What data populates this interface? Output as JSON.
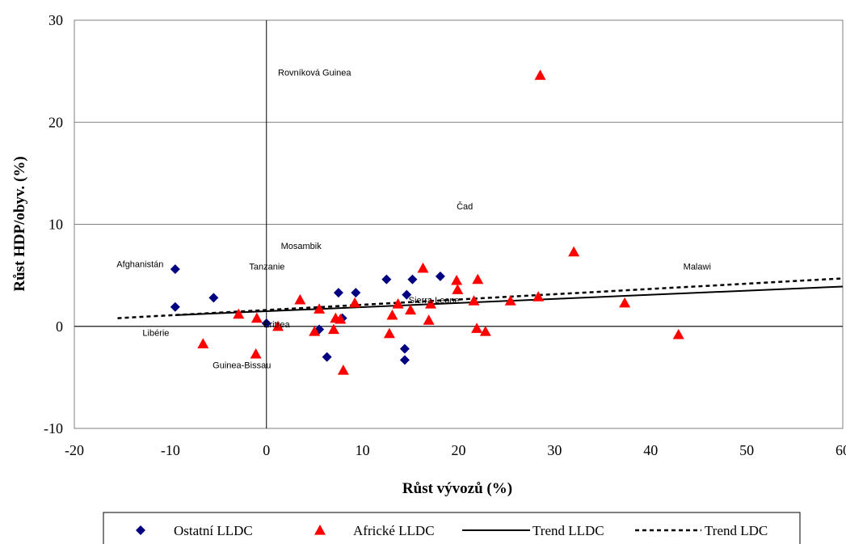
{
  "chart_data": {
    "type": "scatter",
    "xlabel": "Růst vývozů (%)",
    "ylabel": "Růst HDP/obyv. (%)",
    "xlim": [
      -20,
      60
    ],
    "ylim": [
      -10,
      30
    ],
    "x_ticks": [
      -20,
      -10,
      0,
      10,
      20,
      30,
      40,
      50,
      60
    ],
    "y_ticks": [
      -10,
      0,
      10,
      20,
      30
    ],
    "grid": "horizontal",
    "legend_position": "bottom",
    "series": [
      {
        "name": "Ostatní LLDC",
        "marker": "diamond",
        "color": "#000080",
        "points": [
          {
            "x": -9.5,
            "y": 5.6
          },
          {
            "x": -9.5,
            "y": 1.9
          },
          {
            "x": -5.5,
            "y": 2.8
          },
          {
            "x": 0.0,
            "y": 0.3
          },
          {
            "x": 5.5,
            "y": -0.3
          },
          {
            "x": 6.3,
            "y": -3.0
          },
          {
            "x": 7.5,
            "y": 3.3
          },
          {
            "x": 7.9,
            "y": 0.8
          },
          {
            "x": 9.3,
            "y": 3.3
          },
          {
            "x": 12.5,
            "y": 4.6
          },
          {
            "x": 14.4,
            "y": -2.2
          },
          {
            "x": 14.4,
            "y": -3.3
          },
          {
            "x": 14.6,
            "y": 3.1
          },
          {
            "x": 15.2,
            "y": 4.6
          },
          {
            "x": 18.1,
            "y": 4.9
          }
        ]
      },
      {
        "name": "Africké LLDC",
        "marker": "triangle",
        "color": "#ff0000",
        "points": [
          {
            "x": -6.6,
            "y": -1.7
          },
          {
            "x": -2.9,
            "y": 1.2
          },
          {
            "x": -1.1,
            "y": -2.7
          },
          {
            "x": -1.0,
            "y": 0.8
          },
          {
            "x": 1.2,
            "y": 0.0
          },
          {
            "x": 3.5,
            "y": 2.6
          },
          {
            "x": 5.0,
            "y": -0.5
          },
          {
            "x": 5.5,
            "y": 1.7
          },
          {
            "x": 7.0,
            "y": -0.3
          },
          {
            "x": 7.2,
            "y": 0.8
          },
          {
            "x": 7.7,
            "y": 0.7
          },
          {
            "x": 8.0,
            "y": -4.3
          },
          {
            "x": 9.2,
            "y": 2.3
          },
          {
            "x": 12.8,
            "y": -0.7
          },
          {
            "x": 13.1,
            "y": 1.1
          },
          {
            "x": 13.7,
            "y": 2.2
          },
          {
            "x": 15.0,
            "y": 1.6
          },
          {
            "x": 16.3,
            "y": 5.7
          },
          {
            "x": 16.9,
            "y": 0.6
          },
          {
            "x": 17.1,
            "y": 2.2
          },
          {
            "x": 19.8,
            "y": 4.5
          },
          {
            "x": 19.9,
            "y": 3.6
          },
          {
            "x": 21.6,
            "y": 2.5
          },
          {
            "x": 21.9,
            "y": -0.2
          },
          {
            "x": 22.0,
            "y": 4.6
          },
          {
            "x": 22.8,
            "y": -0.5
          },
          {
            "x": 25.4,
            "y": 2.5
          },
          {
            "x": 28.3,
            "y": 2.9
          },
          {
            "x": 28.5,
            "y": 24.6
          },
          {
            "x": 32.0,
            "y": 7.3
          },
          {
            "x": 37.3,
            "y": 2.3
          },
          {
            "x": 42.9,
            "y": -0.8
          }
        ]
      },
      {
        "name": "Trend LLDC",
        "type": "line",
        "style": "solid",
        "color": "#000000",
        "points": [
          {
            "x": -9.5,
            "y": 1.1
          },
          {
            "x": 60,
            "y": 3.9
          }
        ]
      },
      {
        "name": "Trend LDC",
        "type": "line",
        "style": "dashed",
        "color": "#000000",
        "points": [
          {
            "x": -15.5,
            "y": 0.8
          },
          {
            "x": 60,
            "y": 4.7
          }
        ]
      }
    ],
    "annotations": [
      {
        "text": "Rovníková Guinea",
        "x": 1.2,
        "y": 24.9
      },
      {
        "text": "Čad",
        "x": 19.8,
        "y": 11.8
      },
      {
        "text": "Mosambik",
        "x": 1.5,
        "y": 7.9
      },
      {
        "text": "Afghanistán",
        "x": -15.6,
        "y": 6.1
      },
      {
        "text": "Tanzanie",
        "x": -1.8,
        "y": 5.9
      },
      {
        "text": "Malawi",
        "x": 43.4,
        "y": 5.9
      },
      {
        "text": "Sierra Leone",
        "x": 14.8,
        "y": 2.6
      },
      {
        "text": "Eritrea",
        "x": -0.3,
        "y": 0.2
      },
      {
        "text": "Libérie",
        "x": -12.9,
        "y": -0.6
      },
      {
        "text": "Guinea-Bissau",
        "x": -5.6,
        "y": -3.8
      }
    ]
  }
}
